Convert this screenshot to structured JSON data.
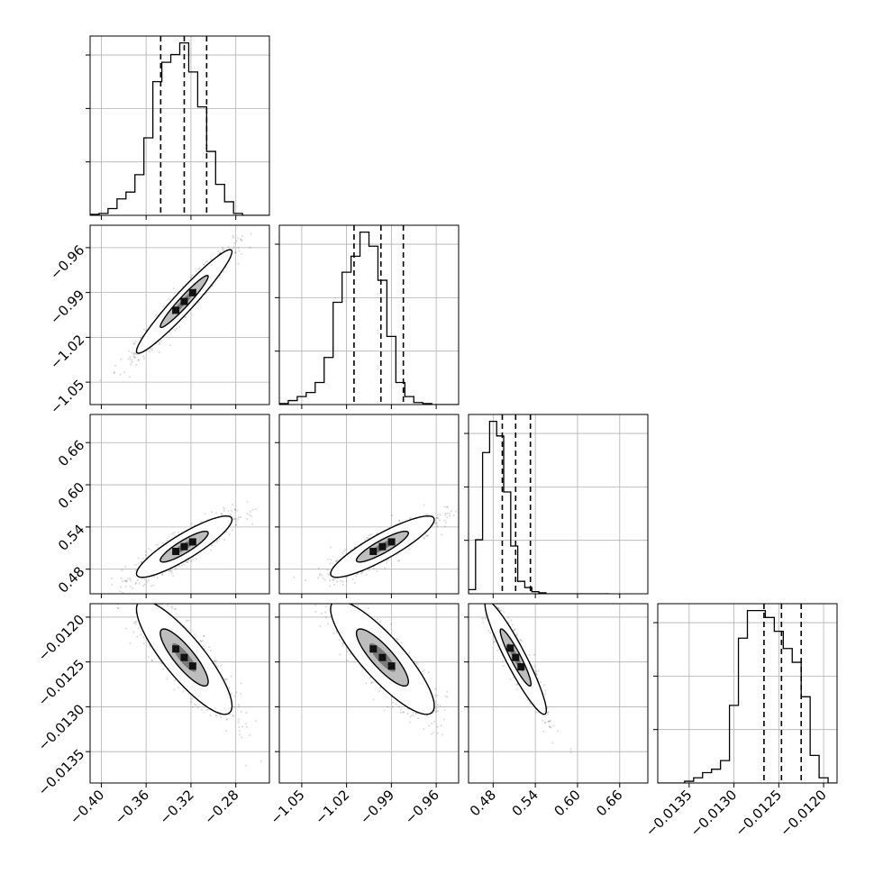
{
  "chart_data": {
    "type": "corner",
    "n_params": 4,
    "params": [
      {
        "range": [
          -0.41,
          -0.25
        ],
        "ticks": [
          -0.4,
          -0.36,
          -0.32,
          -0.28
        ],
        "tick_labels": [
          "−0.40",
          "−0.36",
          "−0.32",
          "−0.28"
        ],
        "quantiles": [
          -0.347,
          -0.326,
          -0.306
        ],
        "hist": {
          "edges_start": -0.41,
          "bin_width": 0.008,
          "counts": [
            1,
            2,
            7,
            17,
            24,
            42,
            80,
            138,
            158,
            166,
            178,
            148,
            112,
            66,
            32,
            14,
            2,
            0,
            0,
            0
          ]
        }
      },
      {
        "range": [
          -1.065,
          -0.945
        ],
        "ticks": [
          -1.05,
          -1.02,
          -0.99,
          -0.96
        ],
        "tick_labels": [
          "−1.05",
          "−1.02",
          "−0.99",
          "−0.96"
        ],
        "quantiles": [
          -1.015,
          -0.997,
          -0.982
        ],
        "hist": {
          "edges_start": -1.065,
          "bin_width": 0.006,
          "counts": [
            1,
            4,
            8,
            12,
            22,
            47,
            102,
            132,
            148,
            172,
            158,
            124,
            68,
            22,
            8,
            2,
            1,
            0,
            0,
            0
          ]
        }
      },
      {
        "range": [
          0.445,
          0.7
        ],
        "ticks": [
          0.48,
          0.54,
          0.6,
          0.66
        ],
        "tick_labels": [
          "0.48",
          "0.54",
          "0.60",
          "0.66"
        ],
        "quantiles": [
          0.493,
          0.512,
          0.533
        ],
        "hist": {
          "edges_start": 0.445,
          "bin_width": 0.01,
          "counts": [
            4,
            52,
            136,
            166,
            152,
            98,
            46,
            12,
            6,
            2,
            1,
            0,
            0,
            0,
            0,
            0,
            0,
            0,
            0,
            0
          ]
        }
      },
      {
        "range": [
          -0.01385,
          -0.01185
        ],
        "ticks": [
          -0.0135,
          -0.013,
          -0.0125,
          -0.012
        ],
        "tick_labels": [
          "−0.0135",
          "−0.0130",
          "−0.0125",
          "−0.0120"
        ],
        "quantiles": [
          -0.012665,
          -0.01247,
          -0.01225
        ],
        "hist": {
          "edges_start": -0.01385,
          "bin_width": 0.0001,
          "counts": [
            0,
            0,
            0,
            1,
            3,
            6,
            8,
            13,
            45,
            84,
            100,
            100,
            96,
            88,
            78,
            70,
            50,
            16,
            3,
            0
          ]
        }
      }
    ],
    "pairs": [
      {
        "row": 1,
        "col": 0,
        "center": [
          -0.326,
          -0.996
        ],
        "sd": [
          0.0215,
          0.0175
        ],
        "corr": 0.96
      },
      {
        "row": 2,
        "col": 0,
        "center": [
          -0.326,
          0.512
        ],
        "sd": [
          0.0215,
          0.022
        ],
        "corr": 0.88
      },
      {
        "row": 2,
        "col": 1,
        "center": [
          -0.996,
          0.512
        ],
        "sd": [
          0.0175,
          0.022
        ],
        "corr": 0.88
      },
      {
        "row": 3,
        "col": 0,
        "center": [
          -0.326,
          -0.01245
        ],
        "sd": [
          0.0215,
          0.00032
        ],
        "corr": -0.85
      },
      {
        "row": 3,
        "col": 1,
        "center": [
          -0.996,
          -0.01245
        ],
        "sd": [
          0.0175,
          0.00032
        ],
        "corr": -0.85
      },
      {
        "row": 3,
        "col": 2,
        "center": [
          0.512,
          -0.01245
        ],
        "sd": [
          0.022,
          0.00032
        ],
        "corr": -0.93
      }
    ],
    "contour_levels": [
      0.39,
      0.86
    ],
    "grid": true
  }
}
